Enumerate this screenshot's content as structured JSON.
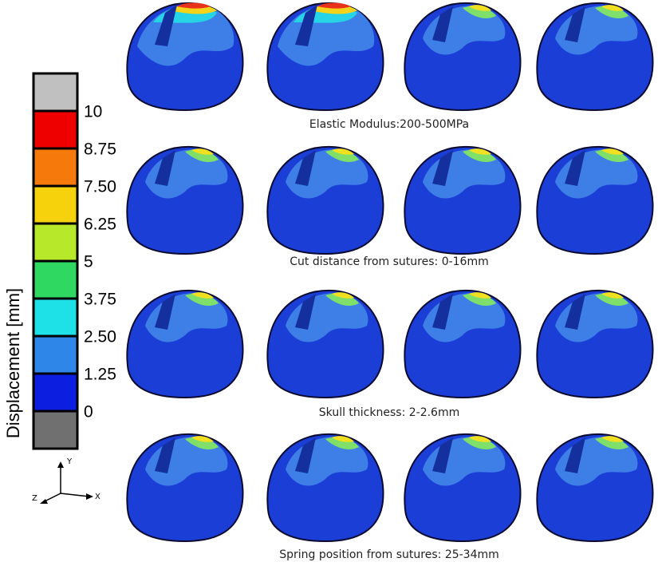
{
  "legend": {
    "title": "Displacement [mm]",
    "labels": [
      "10",
      "8.75",
      "7.50",
      "6.25",
      "5",
      "3.75",
      "2.50",
      "1.25",
      "0"
    ]
  },
  "axes": {
    "y": "Y",
    "z": "Z",
    "x": "X"
  },
  "rows": [
    {
      "caption": "Elastic Modulus:200-500MPa"
    },
    {
      "caption": "Cut distance from sutures: 0-16mm"
    },
    {
      "caption": "Skull thickness: 2-2.6mm"
    },
    {
      "caption": "Spring position from sutures: 25-34mm"
    }
  ]
}
